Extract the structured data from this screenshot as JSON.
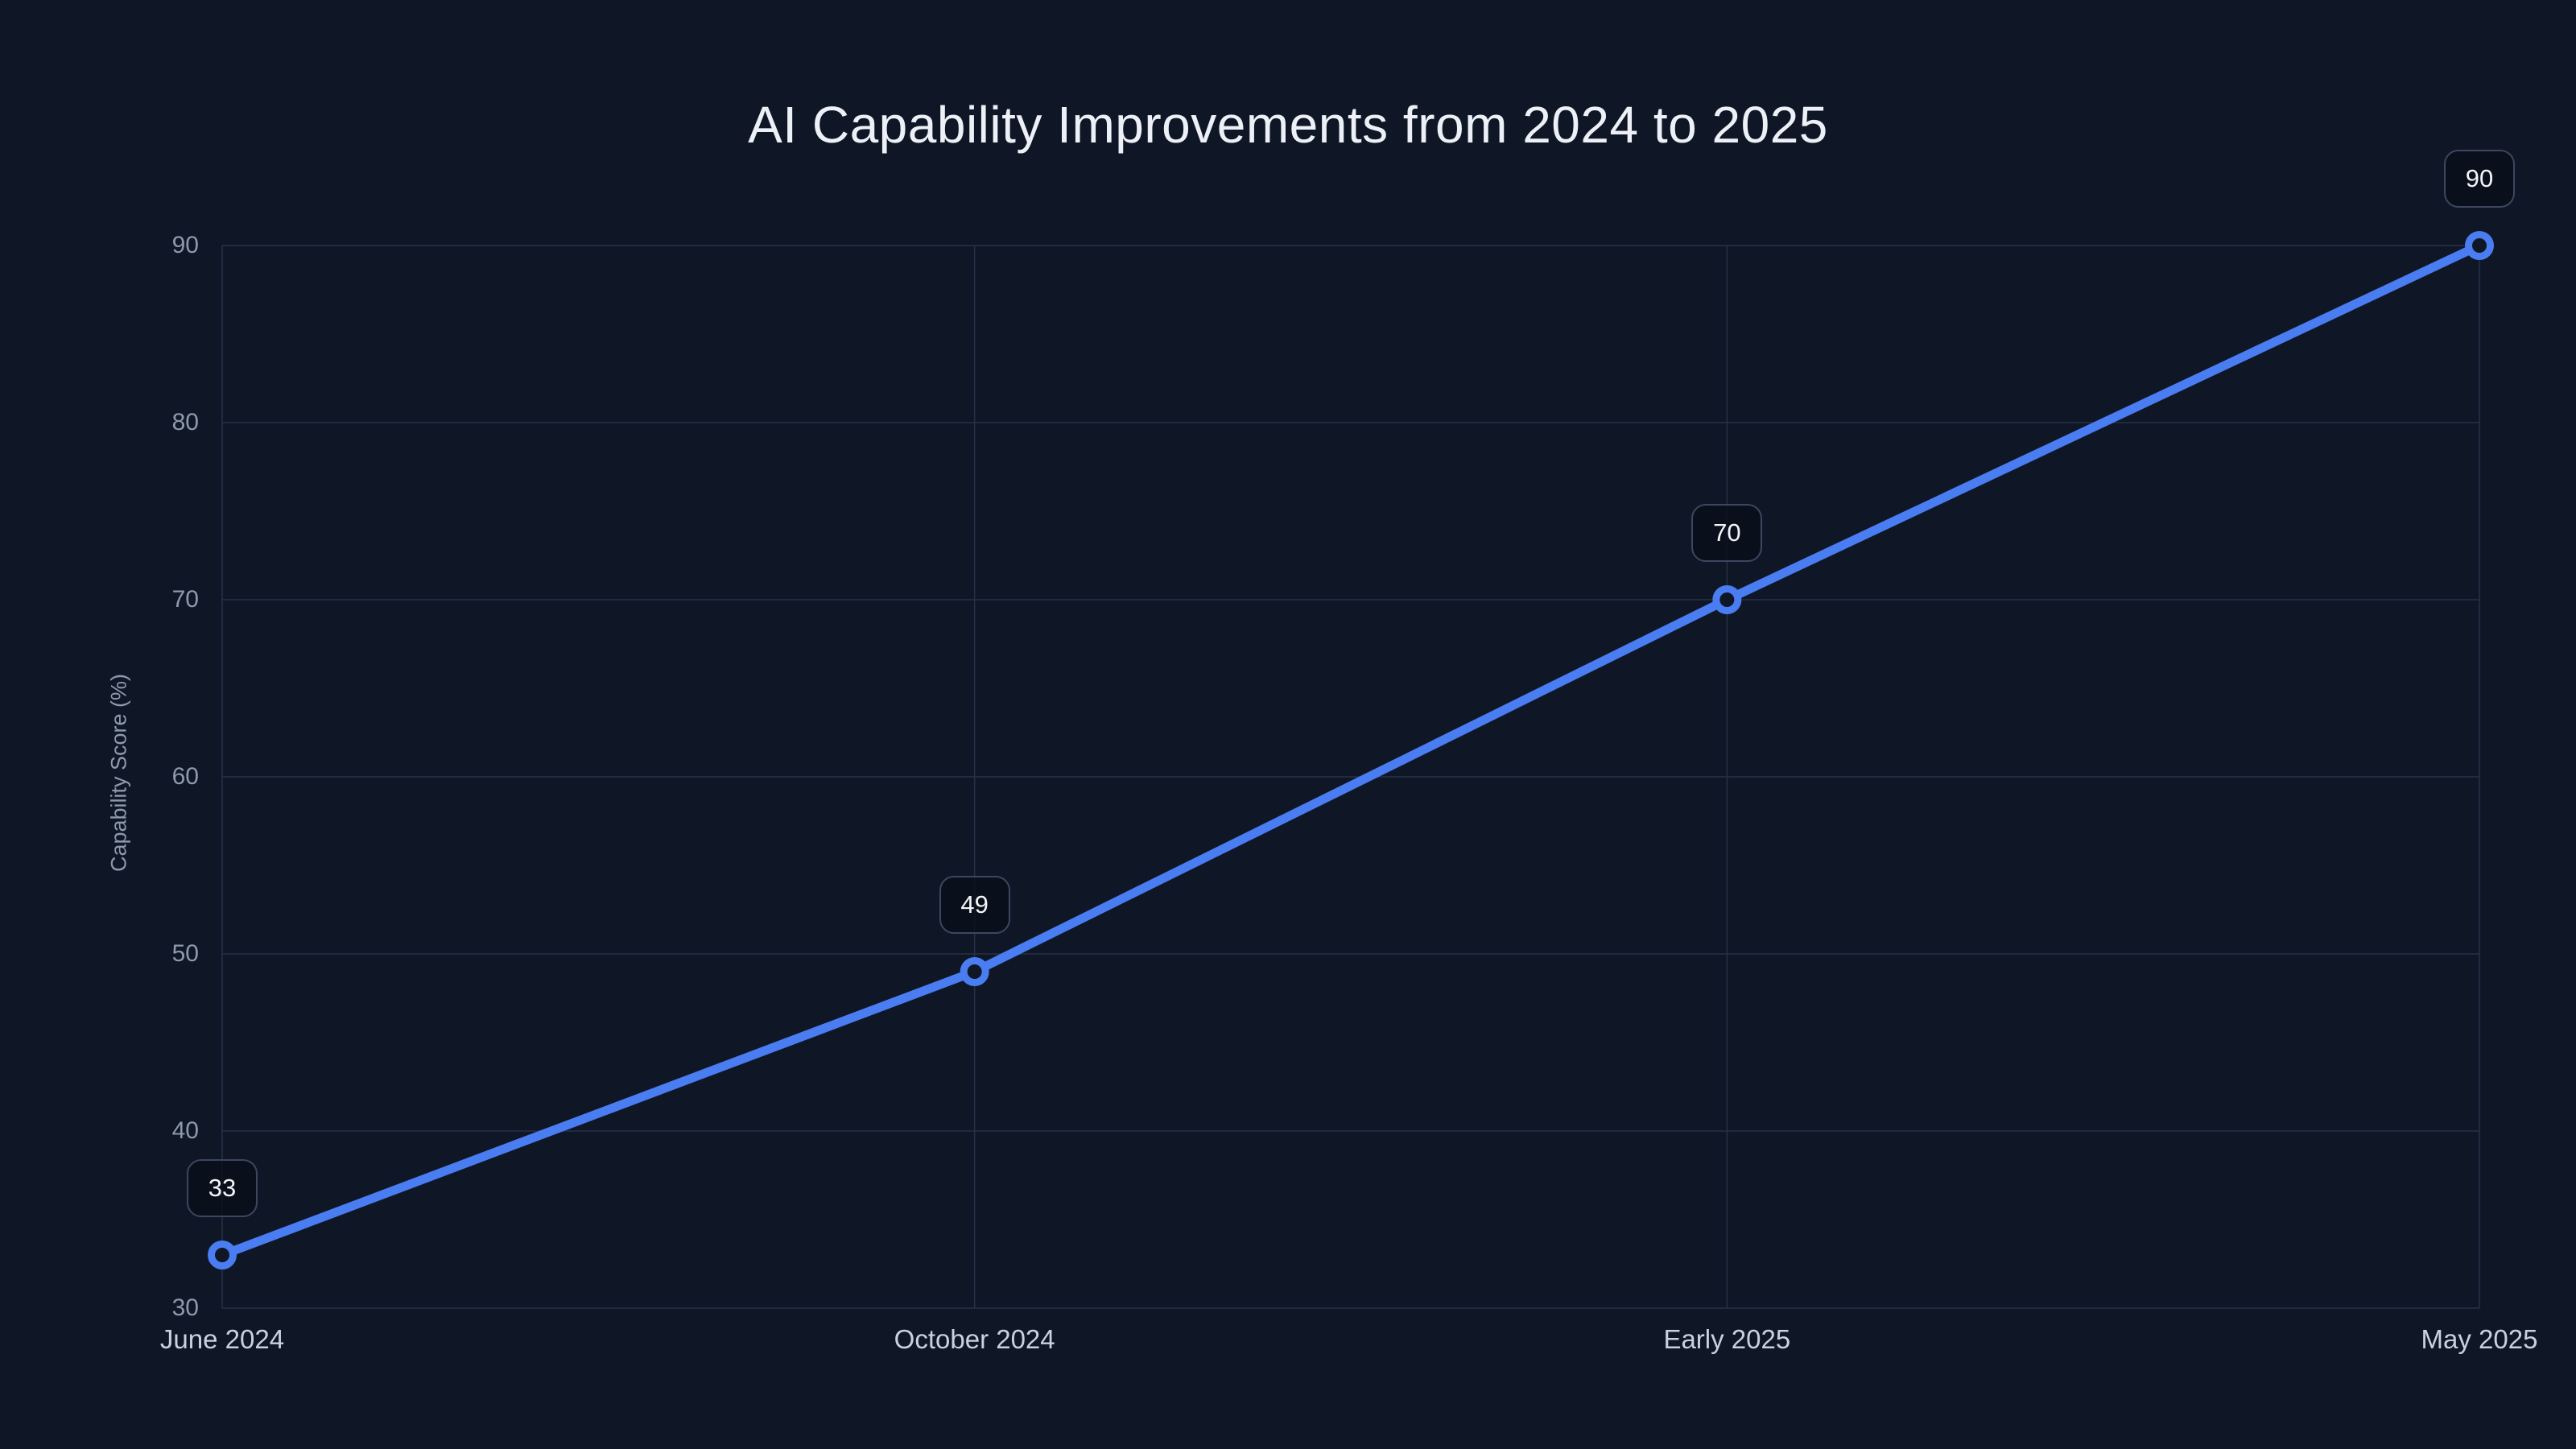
{
  "chart_data": {
    "type": "line",
    "title": "AI Capability Improvements from 2024 to 2025",
    "xlabel": "",
    "ylabel": "Capability Score (%)",
    "categories": [
      "June 2024",
      "October 2024",
      "Early 2025",
      "May 2025"
    ],
    "series": [
      {
        "name": "Capability Score",
        "values": [
          33,
          49,
          70,
          90
        ]
      }
    ],
    "point_labels": [
      "33",
      "49",
      "70",
      "90"
    ],
    "ylim": [
      30,
      90
    ],
    "yticks": [
      30,
      40,
      50,
      60,
      70,
      80,
      90
    ],
    "grid": true,
    "legend_position": "none",
    "colors": {
      "background": "#0f1726",
      "line": "#4a7df2",
      "marker_fill": "#0f1726",
      "gridline": "#263148",
      "title_text": "#edf1f7",
      "ytick_text": "#8e99ad",
      "xtick_text": "#c9d1e0",
      "label_box_border": "#3d4660",
      "label_box_fill": "rgba(10,15,26,0.82)",
      "label_text": "#f2f4f8"
    }
  }
}
